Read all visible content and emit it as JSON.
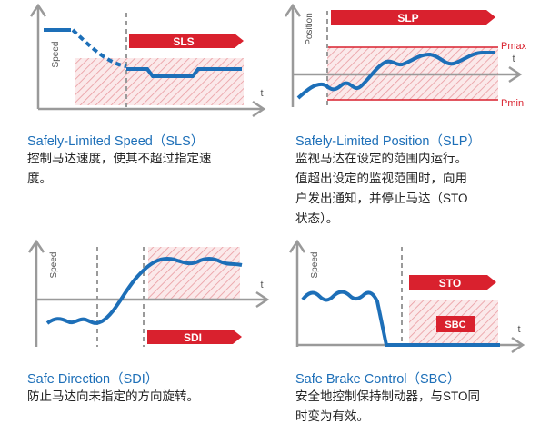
{
  "colors": {
    "axis": "#9a9a9a",
    "curve": "#1d6fb8",
    "banner": "#d9212e",
    "limit": "#d9212e",
    "title": "#1d6fb8",
    "text": "#222222"
  },
  "panels": {
    "sls": {
      "axis_y": "Speed",
      "axis_x": "t",
      "banner": "SLS",
      "title": "Safely-Limited Speed（SLS）",
      "desc": [
        "控制马达速度，使其不超过指定速",
        "度。"
      ]
    },
    "slp": {
      "axis_y": "Position",
      "axis_x": "t",
      "banner": "SLP",
      "pmax": "Pmax",
      "pmin": "Pmin",
      "title": "Safely-Limited Position（SLP）",
      "desc": [
        "监视马达在设定的范围内运行。",
        "值超出设定的监视范围时，向用",
        "户发出通知，并停止马达（STO",
        "状态）。"
      ]
    },
    "sdi": {
      "axis_y": "Speed",
      "axis_x": "t",
      "banner": "SDI",
      "title": "Safe Direction（SDI）",
      "desc": [
        "防止马达向未指定的方向旋转。"
      ]
    },
    "sbc": {
      "axis_y": "Speed",
      "axis_x": "t",
      "banner_top": "STO",
      "banner_box": "SBC",
      "title": "Safe Brake Control（SBC）",
      "desc": [
        "安全地控制保持制动器，与STO同",
        "时变为有效。"
      ]
    }
  }
}
